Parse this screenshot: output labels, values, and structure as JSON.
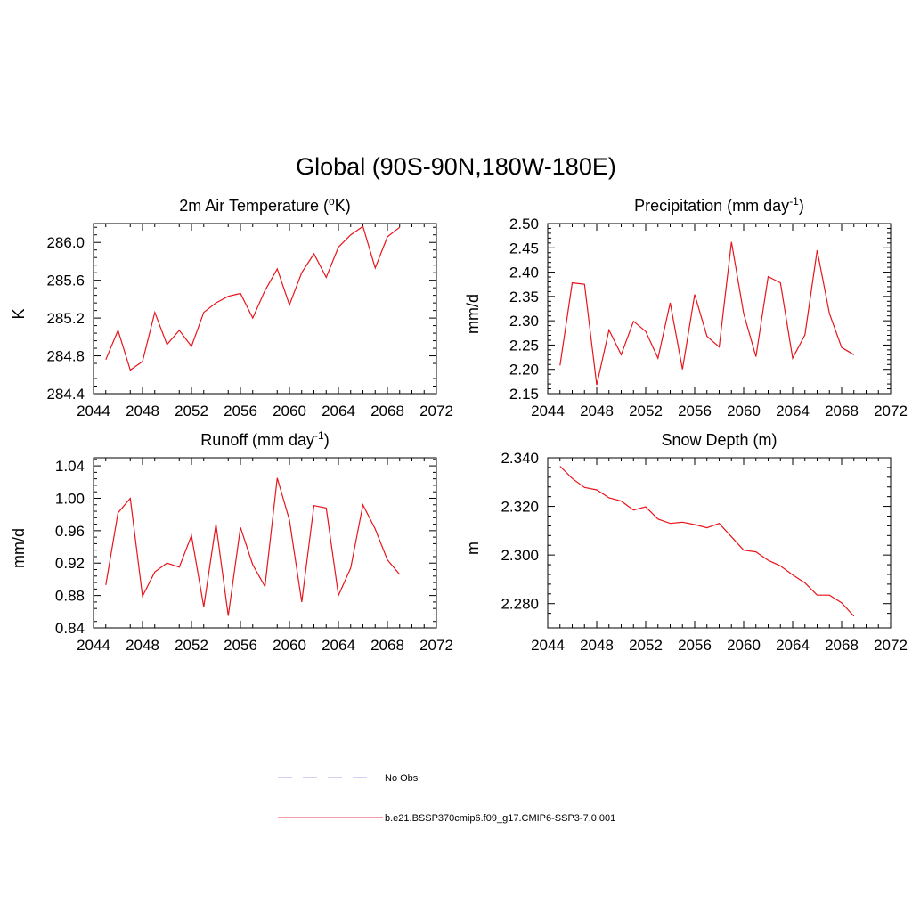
{
  "figure": {
    "title": "Global (90S-90N,180W-180E)",
    "line_color": "#e8141a",
    "legend": {
      "entries": [
        {
          "label": "No Obs",
          "style": "dashed",
          "color": "#b3b3f0"
        },
        {
          "label": "b.e21.BSSP370cmip6.f09_g17.CMIP6-SSP3-7.0.001",
          "style": "solid",
          "color": "#f06070"
        }
      ]
    }
  },
  "chart_data": [
    {
      "type": "line",
      "title": "2m Air Temperature (",
      "title_sup": "o",
      "title_after": "K)",
      "title_sup_suffix": "",
      "xlabel": "",
      "ylabel": "K",
      "xlim": [
        2044,
        2072
      ],
      "ylim": [
        284.4,
        286.2
      ],
      "xticks": [
        "2044",
        "2048",
        "2052",
        "2056",
        "2060",
        "2064",
        "2068",
        "2072"
      ],
      "yticks": [
        "284.4",
        "284.8",
        "285.2",
        "285.6",
        "286.0"
      ],
      "grid": false,
      "series": [
        {
          "x": [
            2045,
            2046,
            2047,
            2048,
            2049,
            2050,
            2051,
            2052,
            2053,
            2054,
            2055,
            2056,
            2057,
            2058,
            2059,
            2060,
            2061,
            2062,
            2063,
            2064,
            2065,
            2066,
            2067,
            2068,
            2069
          ],
          "y": [
            284.76,
            285.07,
            284.65,
            284.74,
            285.26,
            284.92,
            285.07,
            284.9,
            285.26,
            285.36,
            285.43,
            285.46,
            285.2,
            285.49,
            285.72,
            285.34,
            285.68,
            285.88,
            285.63,
            285.95,
            286.08,
            286.17,
            285.73,
            286.06,
            286.16
          ]
        }
      ]
    },
    {
      "type": "line",
      "title": "Precipitation (mm day",
      "title_sup": "-1",
      "title_after": ")",
      "xlabel": "",
      "ylabel": "mm/d",
      "xlim": [
        2044,
        2072
      ],
      "ylim": [
        2.15,
        2.5
      ],
      "xticks": [
        "2044",
        "2048",
        "2052",
        "2056",
        "2060",
        "2064",
        "2068",
        "2072"
      ],
      "yticks": [
        "2.15",
        "2.20",
        "2.25",
        "2.30",
        "2.35",
        "2.40",
        "2.45",
        "2.50"
      ],
      "grid": false,
      "series": [
        {
          "x": [
            2045,
            2046,
            2047,
            2048,
            2049,
            2050,
            2051,
            2052,
            2053,
            2054,
            2055,
            2056,
            2057,
            2058,
            2059,
            2060,
            2061,
            2062,
            2063,
            2064,
            2065,
            2066,
            2067,
            2068,
            2069
          ],
          "y": [
            2.208,
            2.378,
            2.375,
            2.168,
            2.281,
            2.23,
            2.299,
            2.278,
            2.223,
            2.337,
            2.2,
            2.354,
            2.268,
            2.246,
            2.462,
            2.315,
            2.226,
            2.391,
            2.378,
            2.223,
            2.271,
            2.445,
            2.315,
            2.245,
            2.23
          ]
        }
      ]
    },
    {
      "type": "line",
      "title": "Runoff (mm day",
      "title_sup": "-1",
      "title_after": ")",
      "xlabel": "",
      "ylabel": "mm/d",
      "xlim": [
        2044,
        2072
      ],
      "ylim": [
        0.84,
        1.05
      ],
      "xticks": [
        "2044",
        "2048",
        "2052",
        "2056",
        "2060",
        "2064",
        "2068",
        "2072"
      ],
      "yticks": [
        "0.84",
        "0.88",
        "0.92",
        "0.96",
        "1.00",
        "1.04"
      ],
      "grid": false,
      "series": [
        {
          "x": [
            2045,
            2046,
            2047,
            2048,
            2049,
            2050,
            2051,
            2052,
            2053,
            2054,
            2055,
            2056,
            2057,
            2058,
            2059,
            2060,
            2061,
            2062,
            2063,
            2064,
            2065,
            2066,
            2067,
            2068,
            2069
          ],
          "y": [
            0.893,
            0.982,
            1.0,
            0.879,
            0.909,
            0.92,
            0.915,
            0.954,
            0.866,
            0.968,
            0.855,
            0.964,
            0.918,
            0.891,
            1.025,
            0.973,
            0.872,
            0.991,
            0.988,
            0.88,
            0.914,
            0.992,
            0.962,
            0.924,
            0.906
          ]
        }
      ]
    },
    {
      "type": "line",
      "title": "Snow Depth (m)",
      "title_sup": "",
      "title_after": "",
      "xlabel": "",
      "ylabel": "m",
      "xlim": [
        2044,
        2072
      ],
      "ylim": [
        2.27,
        2.34
      ],
      "xticks": [
        "2044",
        "2048",
        "2052",
        "2056",
        "2060",
        "2064",
        "2068",
        "2072"
      ],
      "yticks": [
        "2.280",
        "2.300",
        "2.320",
        "2.340"
      ],
      "grid": false,
      "series": [
        {
          "x": [
            2045,
            2046,
            2047,
            2048,
            2049,
            2050,
            2051,
            2052,
            2053,
            2054,
            2055,
            2056,
            2057,
            2058,
            2059,
            2060,
            2061,
            2062,
            2063,
            2064,
            2065,
            2066,
            2067,
            2068,
            2069
          ],
          "y": [
            2.3365,
            2.3315,
            2.3278,
            2.3268,
            2.3235,
            2.3222,
            2.3185,
            2.3198,
            2.3148,
            2.313,
            2.3135,
            2.3125,
            2.3112,
            2.313,
            2.3075,
            2.302,
            2.3013,
            2.2978,
            2.2955,
            2.2918,
            2.2885,
            2.2835,
            2.2835,
            2.2803,
            2.2748
          ]
        }
      ]
    }
  ]
}
